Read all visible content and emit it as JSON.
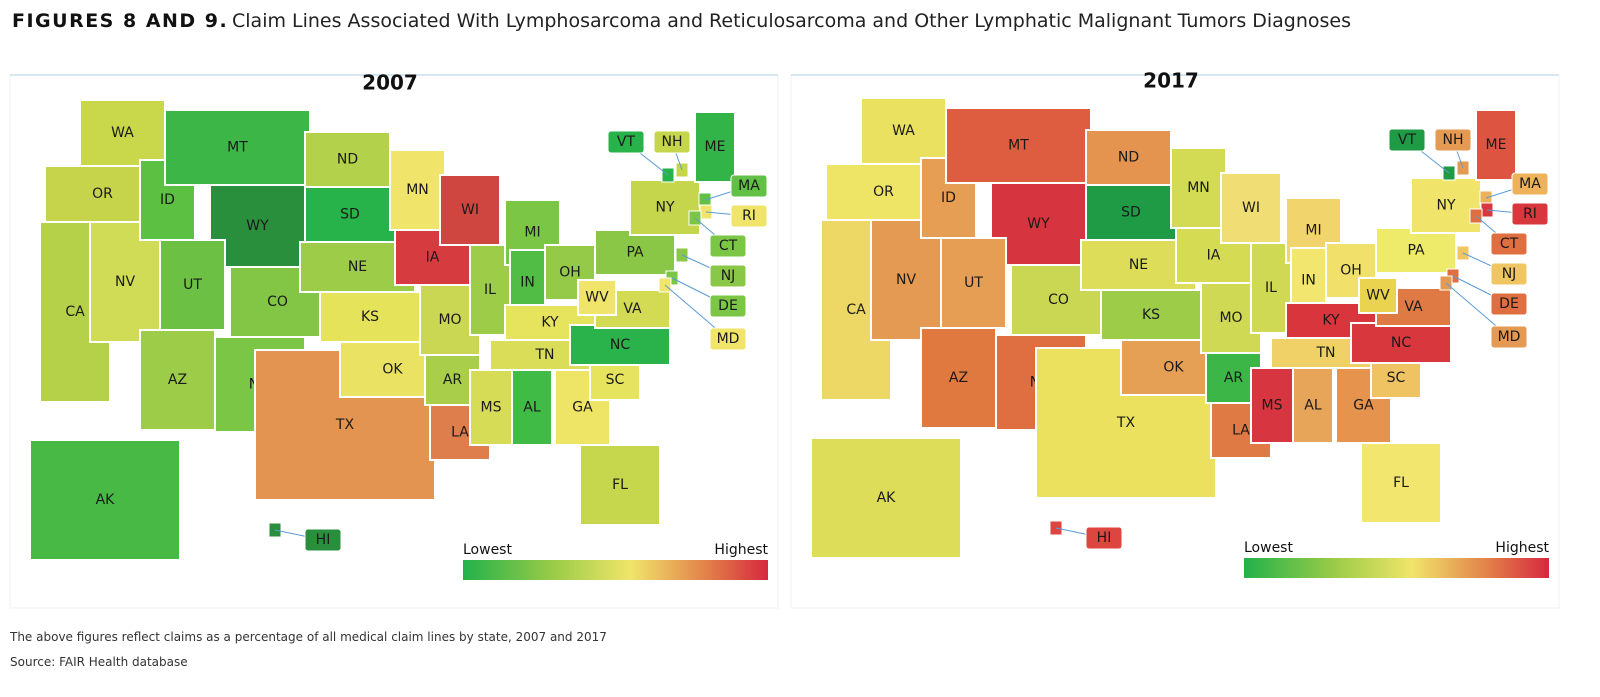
{
  "header": {
    "figure_label": "FIGURES 8 AND 9.",
    "title": "Claim Lines Associated With Lymphosarcoma and Reticulosarcoma and Other Lymphatic Malignant Tumors Diagnoses"
  },
  "maps": [
    {
      "year": "2007",
      "legend_low": "Lowest",
      "legend_high": "Highest",
      "states": [
        {
          "label": "WA",
          "color": "#c8d84a"
        },
        {
          "label": "OR",
          "color": "#c5d44a"
        },
        {
          "label": "CA",
          "color": "#b5d14a"
        },
        {
          "label": "NV",
          "color": "#d0dc55"
        },
        {
          "label": "ID",
          "color": "#5cc043"
        },
        {
          "label": "MT",
          "color": "#3db648"
        },
        {
          "label": "WY",
          "color": "#2a8f3d"
        },
        {
          "label": "UT",
          "color": "#6cc043"
        },
        {
          "label": "CO",
          "color": "#83c545"
        },
        {
          "label": "AZ",
          "color": "#9ccc48"
        },
        {
          "label": "NM",
          "color": "#7cc646"
        },
        {
          "label": "ND",
          "color": "#b3d14a"
        },
        {
          "label": "SD",
          "color": "#27b24a"
        },
        {
          "label": "NE",
          "color": "#9dcc48"
        },
        {
          "label": "KS",
          "color": "#e4e35a"
        },
        {
          "label": "TX",
          "color": "#e29450"
        },
        {
          "label": "OK",
          "color": "#eae263"
        },
        {
          "label": "MN",
          "color": "#f0e56a"
        },
        {
          "label": "IA",
          "color": "#d63b3f"
        },
        {
          "label": "MO",
          "color": "#cad752"
        },
        {
          "label": "AR",
          "color": "#a9cf4a"
        },
        {
          "label": "LA",
          "color": "#dd7e4c"
        },
        {
          "label": "WI",
          "color": "#cf4540"
        },
        {
          "label": "IL",
          "color": "#9ccc48"
        },
        {
          "label": "MI",
          "color": "#7cc646"
        },
        {
          "label": "IN",
          "color": "#52bd45"
        },
        {
          "label": "OH",
          "color": "#94ca47"
        },
        {
          "label": "KY",
          "color": "#e6e35d"
        },
        {
          "label": "TN",
          "color": "#d9dd57"
        },
        {
          "label": "MS",
          "color": "#d7dc56"
        },
        {
          "label": "AL",
          "color": "#3fbb46"
        },
        {
          "label": "GA",
          "color": "#eee567"
        },
        {
          "label": "FL",
          "color": "#c6d64d"
        },
        {
          "label": "SC",
          "color": "#e6e35d"
        },
        {
          "label": "NC",
          "color": "#2bb34b"
        },
        {
          "label": "VA",
          "color": "#d3da53"
        },
        {
          "label": "WV",
          "color": "#f0e56a"
        },
        {
          "label": "PA",
          "color": "#8bc747"
        },
        {
          "label": "NY",
          "color": "#c5d54c"
        },
        {
          "label": "AK",
          "color": "#49b945"
        },
        {
          "label": "ME",
          "color": "#32b449"
        },
        {
          "label": "VT",
          "color": "#27b24a"
        },
        {
          "label": "NH",
          "color": "#c5d54c"
        },
        {
          "label": "MA",
          "color": "#62c144"
        },
        {
          "label": "RI",
          "color": "#f0e56a"
        },
        {
          "label": "CT",
          "color": "#7cc646"
        },
        {
          "label": "NJ",
          "color": "#8bc747"
        },
        {
          "label": "DE",
          "color": "#7cc646"
        },
        {
          "label": "MD",
          "color": "#f0e56a"
        },
        {
          "label": "HI",
          "color": "#2a8f3d"
        }
      ]
    },
    {
      "year": "2017",
      "legend_low": "Lowest",
      "legend_high": "Highest",
      "states": [
        {
          "label": "WA",
          "color": "#e9e15f"
        },
        {
          "label": "OR",
          "color": "#eee567"
        },
        {
          "label": "CA",
          "color": "#edd865"
        },
        {
          "label": "NV",
          "color": "#e49a52"
        },
        {
          "label": "ID",
          "color": "#e59e54"
        },
        {
          "label": "MT",
          "color": "#de5d40"
        },
        {
          "label": "WY",
          "color": "#d6353f"
        },
        {
          "label": "UT",
          "color": "#e59e54"
        },
        {
          "label": "CO",
          "color": "#cad752"
        },
        {
          "label": "AZ",
          "color": "#e0793f"
        },
        {
          "label": "NM",
          "color": "#df6f40"
        },
        {
          "label": "ND",
          "color": "#e4944f"
        },
        {
          "label": "SD",
          "color": "#1f9a45"
        },
        {
          "label": "NE",
          "color": "#dedd59"
        },
        {
          "label": "KS",
          "color": "#9ccc48"
        },
        {
          "label": "TX",
          "color": "#ece15e"
        },
        {
          "label": "OK",
          "color": "#e6a055"
        },
        {
          "label": "MN",
          "color": "#d3da53"
        },
        {
          "label": "IA",
          "color": "#d6db54"
        },
        {
          "label": "MO",
          "color": "#d0d954"
        },
        {
          "label": "AR",
          "color": "#3db648"
        },
        {
          "label": "LA",
          "color": "#e07a44"
        },
        {
          "label": "WI",
          "color": "#f0dd74"
        },
        {
          "label": "IL",
          "color": "#d0d954"
        },
        {
          "label": "MI",
          "color": "#f1d46b"
        },
        {
          "label": "IN",
          "color": "#f3e66f"
        },
        {
          "label": "OH",
          "color": "#f1e06a"
        },
        {
          "label": "KY",
          "color": "#d8353d"
        },
        {
          "label": "TN",
          "color": "#f0d168"
        },
        {
          "label": "MS",
          "color": "#d7353f"
        },
        {
          "label": "AL",
          "color": "#e7a55a"
        },
        {
          "label": "GA",
          "color": "#e6934e"
        },
        {
          "label": "FL",
          "color": "#f3e66f"
        },
        {
          "label": "SC",
          "color": "#efc362"
        },
        {
          "label": "NC",
          "color": "#d8383d"
        },
        {
          "label": "VA",
          "color": "#e07a44"
        },
        {
          "label": "WV",
          "color": "#ead44f"
        },
        {
          "label": "PA",
          "color": "#eeea6a"
        },
        {
          "label": "NY",
          "color": "#f0e56a"
        },
        {
          "label": "AK",
          "color": "#dedd59"
        },
        {
          "label": "ME",
          "color": "#dd5440"
        },
        {
          "label": "VT",
          "color": "#1f9a45"
        },
        {
          "label": "NH",
          "color": "#e49a52"
        },
        {
          "label": "MA",
          "color": "#eeb35a"
        },
        {
          "label": "RI",
          "color": "#d8383d"
        },
        {
          "label": "CT",
          "color": "#df6f40"
        },
        {
          "label": "NJ",
          "color": "#f0c663"
        },
        {
          "label": "DE",
          "color": "#df6f40"
        },
        {
          "label": "MD",
          "color": "#e49a52"
        },
        {
          "label": "HI",
          "color": "#dd4540"
        }
      ]
    }
  ],
  "footnote": "The above figures reflect claims as a percentage of all medical claim lines by state, 2007 and 2017",
  "source": "Source: FAIR Health database"
}
